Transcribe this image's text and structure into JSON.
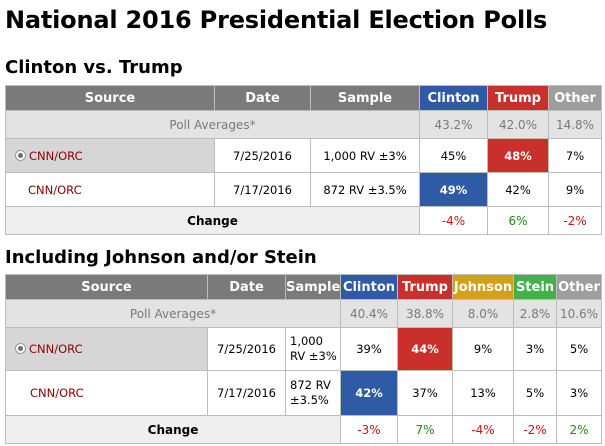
{
  "page": {
    "title": "National 2016 Presidential Election Polls"
  },
  "colors": {
    "header_bg": "#7a7a7a",
    "clinton": "#2f5aa5",
    "trump": "#c9302c",
    "other": "#9e9e9e",
    "johnson": "#d4a017",
    "stein": "#43b04a",
    "negative": "#d11414",
    "positive": "#1e8b1e"
  },
  "section1": {
    "title": "Clinton vs. Trump",
    "headers": {
      "source": "Source",
      "date": "Date",
      "sample": "Sample",
      "clinton": "Clinton",
      "trump": "Trump",
      "other": "Other"
    },
    "averages": {
      "label": "Poll Averages*",
      "clinton": "43.2%",
      "trump": "42.0%",
      "other": "14.8%"
    },
    "rows": [
      {
        "source": "CNN/ORC",
        "date": "7/25/2016",
        "sample": "1,000 RV ±3%",
        "clinton": "45%",
        "trump": "48%",
        "other": "7%",
        "winner": "trump",
        "selected": true
      },
      {
        "source": "CNN/ORC",
        "date": "7/17/2016",
        "sample": "872 RV ±3.5%",
        "clinton": "49%",
        "trump": "42%",
        "other": "9%",
        "winner": "clinton",
        "selected": false
      }
    ],
    "change": {
      "label": "Change",
      "clinton": "-4%",
      "trump": "6%",
      "other": "-2%"
    }
  },
  "section2": {
    "title": "Including Johnson and/or Stein",
    "headers": {
      "source": "Source",
      "date": "Date",
      "sample": "Sample",
      "clinton": "Clinton",
      "trump": "Trump",
      "johnson": "Johnson",
      "stein": "Stein",
      "other": "Other"
    },
    "averages": {
      "label": "Poll Averages*",
      "clinton": "40.4%",
      "trump": "38.8%",
      "johnson": "8.0%",
      "stein": "2.8%",
      "other": "10.6%"
    },
    "rows": [
      {
        "source": "CNN/ORC",
        "date": "7/25/2016",
        "sample_line1": "1,000",
        "sample_line2": "RV ±3%",
        "clinton": "39%",
        "trump": "44%",
        "johnson": "9%",
        "stein": "3%",
        "other": "5%",
        "winner": "trump",
        "selected": true
      },
      {
        "source": "CNN/ORC",
        "date": "7/17/2016",
        "sample_line1": "872 RV",
        "sample_line2": "±3.5%",
        "clinton": "42%",
        "trump": "37%",
        "johnson": "13%",
        "stein": "5%",
        "other": "3%",
        "winner": "clinton",
        "selected": false
      }
    ],
    "change": {
      "label": "Change",
      "clinton": "-3%",
      "trump": "7%",
      "johnson": "-4%",
      "stein": "-2%",
      "other": "2%"
    }
  }
}
